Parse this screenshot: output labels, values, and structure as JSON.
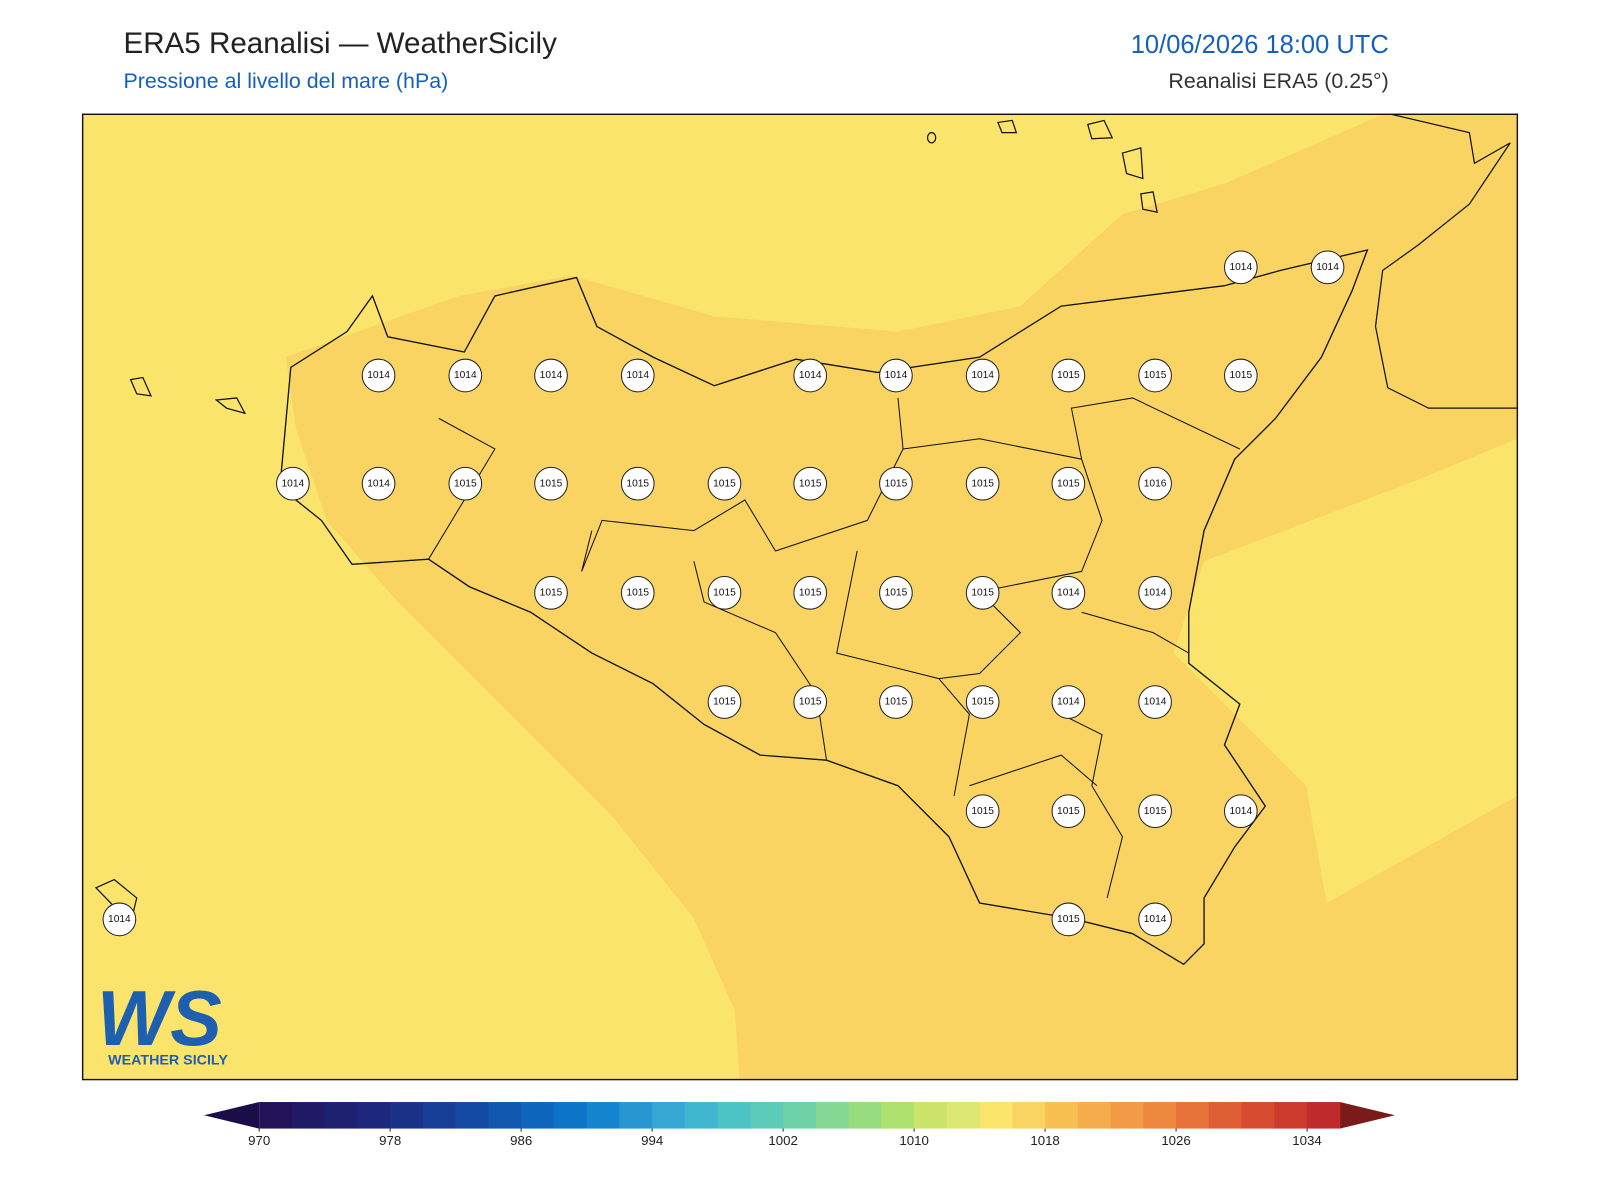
{
  "header": {
    "title": "ERA5 Reanalisi — WeatherSicily",
    "subtitle": "Pressione al livello del mare (hPa)",
    "time": "10/06/2026 18:00 UTC",
    "source": "Reanalisi ERA5 (0.25°)"
  },
  "points": [
    1014,
    1014,
    1014,
    1014,
    1014,
    1014,
    1014,
    1014,
    1014,
    1015,
    1015,
    1015,
    1014,
    1014,
    1015,
    1015,
    1015,
    1015,
    1015,
    1015,
    1015,
    1015,
    1016,
    1015,
    1015,
    1015,
    1015,
    1015,
    1015,
    1014,
    1014,
    1015,
    1015,
    1015,
    1015,
    1014,
    1014,
    1015,
    1015,
    1015,
    1014,
    1014,
    1015,
    1014
  ],
  "colorbar": {
    "lim": [
      970,
      1036
    ],
    "ticks": [
      970,
      978,
      986,
      994,
      1002,
      1010,
      1018,
      1026,
      1034
    ],
    "colors": [
      "#23125a",
      "#1f1a66",
      "#1e2070",
      "#1d287c",
      "#1a3388",
      "#173e96",
      "#1449a3",
      "#1257b0",
      "#0f66bd",
      "#0d75c8",
      "#1585cf",
      "#2797d2",
      "#35a8d3",
      "#3fb8cf",
      "#4cc4c6",
      "#5ccbb8",
      "#6fd2a6",
      "#84d893",
      "#98dc80",
      "#ade26f",
      "#cce46a",
      "#dde872",
      "#fbe46c",
      "#f9d462",
      "#f8c053",
      "#f5ac4c",
      "#f29a45",
      "#ee8840",
      "#e8733a",
      "#e05e35",
      "#d74b31",
      "#cc3a2e",
      "#bf2b2b"
    ],
    "under": "#1a0d48",
    "over": "#7a1a1a"
  },
  "logo": {
    "mark": "WS",
    "name": "WEATHER SICILY"
  }
}
